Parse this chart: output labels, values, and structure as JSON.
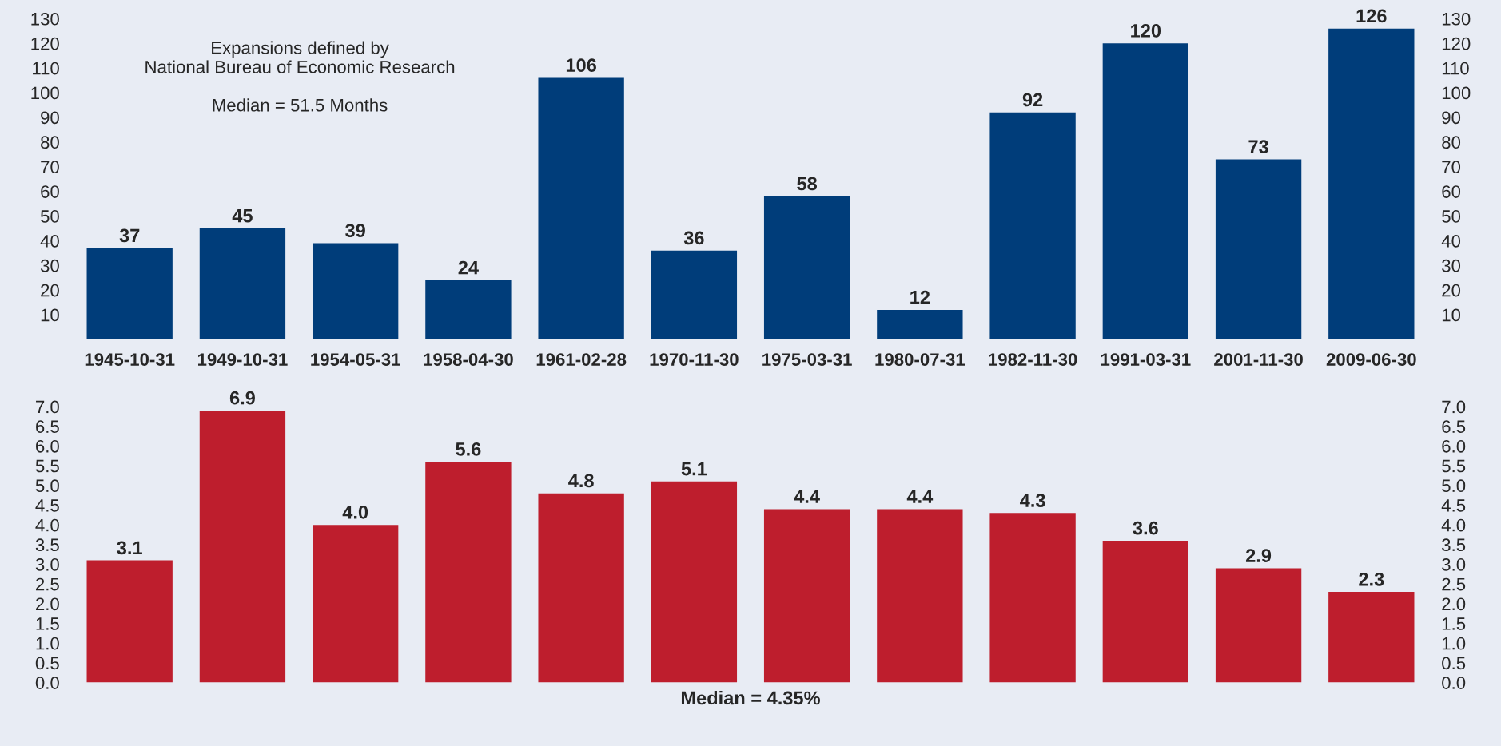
{
  "chart_data": [
    {
      "type": "bar",
      "categories": [
        "1945-10-31",
        "1949-10-31",
        "1954-05-31",
        "1958-04-30",
        "1961-02-28",
        "1970-11-30",
        "1975-03-31",
        "1980-07-31",
        "1982-11-30",
        "1991-03-31",
        "2001-11-30",
        "2009-06-30"
      ],
      "values": [
        37,
        45,
        39,
        24,
        106,
        36,
        58,
        12,
        92,
        120,
        73,
        126
      ],
      "color": "#003d7a",
      "data_labels": true,
      "ylim": [
        0,
        130
      ],
      "yticks": [
        10,
        20,
        30,
        40,
        50,
        60,
        70,
        80,
        90,
        100,
        110,
        120,
        130
      ],
      "y2lim": [
        0,
        130
      ],
      "y2ticks": [
        10,
        20,
        30,
        40,
        50,
        60,
        70,
        80,
        90,
        100,
        110,
        120,
        130
      ],
      "annotations": [
        "Expansions defined by\nNational Bureau of Economic Research\n\nMedian = 51.5 Months"
      ]
    },
    {
      "type": "bar",
      "categories": [
        null,
        null,
        null,
        null,
        null,
        null,
        null,
        null,
        null,
        null,
        null,
        null
      ],
      "values": [
        3.1,
        6.9,
        4.0,
        5.6,
        4.8,
        5.1,
        4.4,
        4.4,
        4.3,
        3.6,
        2.9,
        2.3
      ],
      "color": "#be1e2d",
      "value_labels": [
        "3.1",
        "6.9",
        "4.0",
        "5.6",
        "4.8",
        "5.1",
        "4.4",
        "4.4",
        "4.3",
        "3.6",
        "2.9",
        "2.3"
      ],
      "ylim": [
        0,
        7
      ],
      "yticks": [
        {
          "value": 0,
          "label": "0.0"
        },
        {
          "value": 0.5,
          "label": "0.5"
        },
        {
          "value": 1,
          "label": "1.0"
        },
        {
          "value": 1.5,
          "label": "1.5"
        },
        {
          "value": 2,
          "label": "2.0"
        },
        {
          "value": 2.5,
          "label": "2.5"
        },
        {
          "value": 3,
          "label": "3.0"
        },
        {
          "value": 3.5,
          "label": "3.5"
        },
        {
          "value": 4,
          "label": "4.0"
        },
        {
          "value": 4.5,
          "label": "4.5"
        },
        {
          "value": 5,
          "label": "5.0"
        },
        {
          "value": 5.5,
          "label": "5.5"
        },
        {
          "value": 6,
          "label": "6.0"
        },
        {
          "value": 6.5,
          "label": "6.5"
        },
        {
          "value": 7,
          "label": "7.0"
        }
      ],
      "y2lim": [
        0,
        7
      ],
      "y2ticks": [
        {
          "value": 0,
          "label": "0.0"
        },
        {
          "value": 0.5,
          "label": "0.5"
        },
        {
          "value": 1,
          "label": "1.0"
        },
        {
          "value": 1.5,
          "label": "1.5"
        },
        {
          "value": 2,
          "label": "2.0"
        },
        {
          "value": 2.5,
          "label": "2.5"
        },
        {
          "value": 3,
          "label": "3.0"
        },
        {
          "value": 3.5,
          "label": "3.5"
        },
        {
          "value": 4,
          "label": "4.0"
        },
        {
          "value": 4.5,
          "label": "4.5"
        },
        {
          "value": 5,
          "label": "5.0"
        },
        {
          "value": 5.5,
          "label": "5.5"
        },
        {
          "value": 6,
          "label": "6.0"
        },
        {
          "value": 6.5,
          "label": "6.5"
        },
        {
          "value": 7,
          "label": "7.0"
        }
      ],
      "annotations": [
        "Median = 4.35%"
      ]
    }
  ]
}
